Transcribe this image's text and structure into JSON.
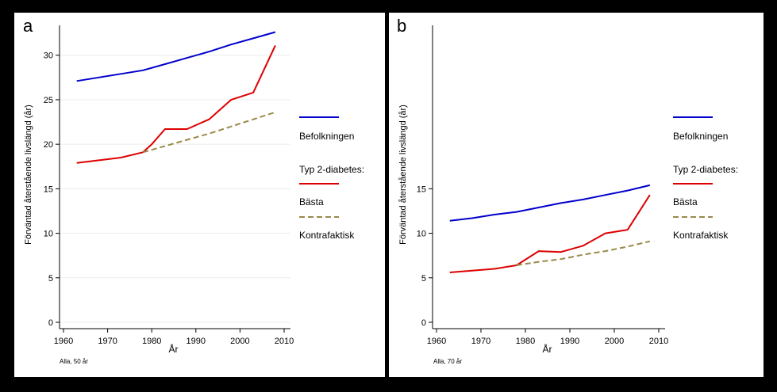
{
  "chart_data": [
    {
      "type": "line",
      "panel_letter": "a",
      "ylabel": "Förväntad återstående livslängd (år)",
      "xlabel": "År",
      "note": "Alla, 50 år",
      "xlim": [
        1960,
        2010
      ],
      "ylim": [
        0,
        33
      ],
      "xticks": [
        1960,
        1970,
        1980,
        1990,
        2000,
        2010
      ],
      "yticks": [
        0,
        5,
        10,
        15,
        20,
        25,
        30
      ],
      "grid": true,
      "legend": {
        "placement": "right",
        "header": "Typ 2-diabetes:",
        "entries": [
          "Befolkningen",
          "Bästa",
          "Kontrafaktisk"
        ]
      },
      "series": [
        {
          "name": "Befolkningen",
          "color": "#0000cc",
          "dash": "solid",
          "x": [
            1963,
            1968,
            1973,
            1978,
            1983,
            1988,
            1993,
            1998,
            2003,
            2008
          ],
          "y": [
            27.1,
            27.5,
            27.9,
            28.3,
            29.0,
            29.7,
            30.4,
            31.2,
            31.9,
            32.6
          ]
        },
        {
          "name": "Bästa",
          "color": "#dd0000",
          "dash": "solid",
          "x": [
            1963,
            1968,
            1973,
            1978,
            1980,
            1983,
            1988,
            1993,
            1998,
            2003,
            2008
          ],
          "y": [
            17.9,
            18.2,
            18.5,
            19.1,
            20.0,
            21.7,
            21.7,
            22.8,
            25.0,
            25.8,
            31.1
          ]
        },
        {
          "name": "Kontrafaktisk",
          "color": "#9a8a4a",
          "dash": "dashed",
          "x": [
            1978,
            1983,
            1988,
            1993,
            1998,
            2003,
            2008
          ],
          "y": [
            19.1,
            19.8,
            20.5,
            21.2,
            22.0,
            22.8,
            23.6
          ]
        }
      ]
    },
    {
      "type": "line",
      "panel_letter": "b",
      "ylabel": "Förväntad återstående livslängd (år)",
      "xlabel": "År",
      "note": "Alla, 70 år",
      "xlim": [
        1960,
        2010
      ],
      "ylim": [
        0,
        33
      ],
      "xticks": [
        1960,
        1970,
        1980,
        1990,
        2000,
        2010
      ],
      "yticks": [
        0,
        5,
        10,
        15
      ],
      "grid": false,
      "legend": {
        "placement": "right",
        "header": "Typ 2-diabetes:",
        "entries": [
          "Befolkningen",
          "Bästa",
          "Kontrafaktisk"
        ]
      },
      "series": [
        {
          "name": "Befolkningen",
          "color": "#0000cc",
          "dash": "solid",
          "x": [
            1963,
            1968,
            1973,
            1978,
            1983,
            1988,
            1993,
            1998,
            2003,
            2008
          ],
          "y": [
            11.4,
            11.7,
            12.1,
            12.4,
            12.9,
            13.4,
            13.8,
            14.3,
            14.8,
            15.4
          ]
        },
        {
          "name": "Bästa",
          "color": "#dd0000",
          "dash": "solid",
          "x": [
            1963,
            1968,
            1973,
            1978,
            1983,
            1988,
            1993,
            1998,
            2003,
            2008
          ],
          "y": [
            5.6,
            5.8,
            6.0,
            6.4,
            8.0,
            7.9,
            8.6,
            10.0,
            10.4,
            14.3
          ]
        },
        {
          "name": "Kontrafaktisk",
          "color": "#9a8a4a",
          "dash": "dashed",
          "x": [
            1978,
            1983,
            1988,
            1993,
            1998,
            2003,
            2008
          ],
          "y": [
            6.4,
            6.8,
            7.1,
            7.6,
            8.0,
            8.5,
            9.1
          ]
        }
      ]
    }
  ]
}
